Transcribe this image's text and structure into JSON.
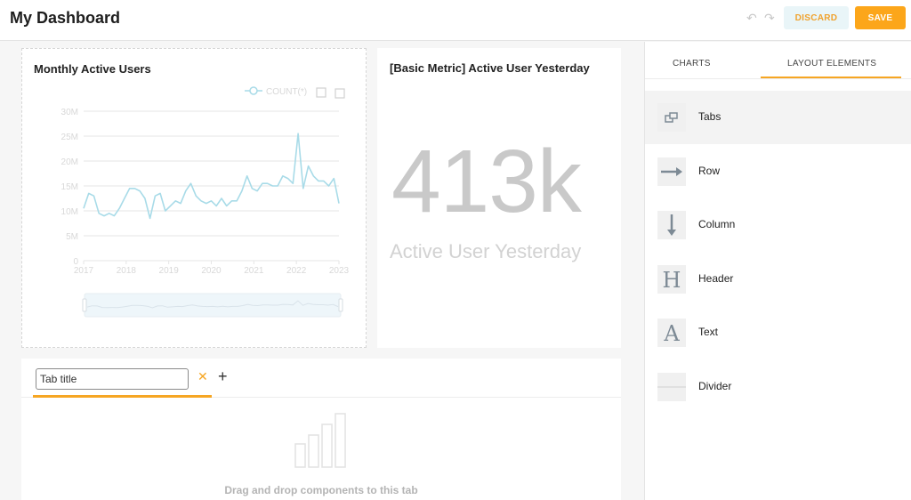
{
  "header": {
    "title": "My Dashboard",
    "undo_icon": "undo-icon",
    "redo_icon": "redo-icon",
    "discard_label": "DISCARD",
    "save_label": "SAVE"
  },
  "colors": {
    "accent": "#fca61a",
    "discard_bg": "#e9f5f8",
    "series": "#a8dbe8",
    "metric_text": "#c9c9c9"
  },
  "mau_chart": {
    "title": "Monthly Active Users"
  },
  "chart_data": {
    "type": "line",
    "title": "Monthly Active Users",
    "legend_position": "top-right",
    "series": [
      {
        "name": "COUNT(*)",
        "values": [
          10.5,
          13.5,
          13,
          9.5,
          9,
          9.5,
          9,
          10.5,
          12.5,
          14.5,
          14.5,
          14,
          12.5,
          8.5,
          13,
          13.5,
          10,
          11,
          12,
          11.5,
          14,
          15.5,
          13,
          12,
          11.5,
          12,
          11,
          12.5,
          11,
          12,
          12,
          14,
          17,
          14.5,
          14,
          15.5,
          15.5,
          15,
          15,
          17,
          16.5,
          15.5,
          25.5,
          14.5,
          19,
          17,
          16,
          16,
          15,
          16.5,
          11.5
        ]
      }
    ],
    "x_start_year": 2017,
    "x_end_year": 2023,
    "x_tick_labels": [
      "2017",
      "2018",
      "2019",
      "2020",
      "2021",
      "2022",
      "2023"
    ],
    "y_tick_labels": [
      "0",
      "5M",
      "10M",
      "15M",
      "20M",
      "25M",
      "30M"
    ],
    "ylim": [
      0,
      30
    ],
    "grid": "horizontal",
    "zoom_slider": true
  },
  "toolbox": {
    "zoom_icon": "zoom-select-icon",
    "reset_icon": "zoom-reset-icon"
  },
  "metric": {
    "title": "[Basic Metric] Active User Yesterday",
    "value": "413k",
    "subheader": "Active User Yesterday"
  },
  "tabs": {
    "input_value": "Tab title",
    "close_icon": "close-icon",
    "add_icon": "plus-icon",
    "empty_message": "Drag and drop components to this tab"
  },
  "sidebar": {
    "tabs": [
      "CHARTS",
      "LAYOUT ELEMENTS"
    ],
    "active_tab": "LAYOUT ELEMENTS",
    "items": [
      {
        "label": "Tabs",
        "icon": "tabs-icon"
      },
      {
        "label": "Row",
        "icon": "arrow-right-icon"
      },
      {
        "label": "Column",
        "icon": "arrow-down-icon"
      },
      {
        "label": "Header",
        "icon": "header-icon"
      },
      {
        "label": "Text",
        "icon": "text-icon"
      },
      {
        "label": "Divider",
        "icon": "divider-icon"
      }
    ]
  }
}
